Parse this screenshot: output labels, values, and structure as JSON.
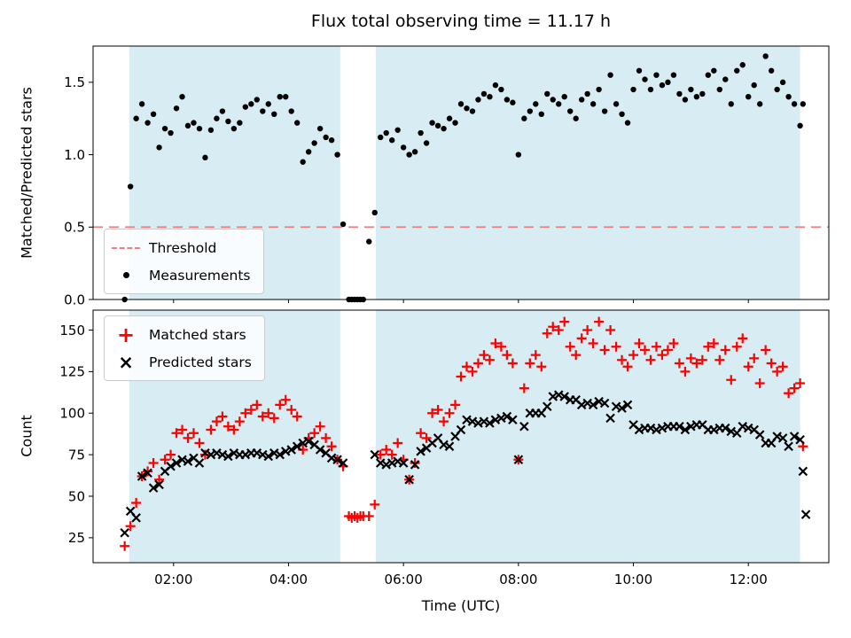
{
  "colors": {
    "shade": "#d8ecf3",
    "threshold": "#f08080",
    "matched": "#ff0000",
    "points": "#000000"
  },
  "chart_data": {
    "type": "scatter",
    "xlabel": "Time (UTC)",
    "xlim": [
      0.6,
      13.4
    ],
    "xticks": [
      {
        "v": 2,
        "label": "02:00"
      },
      {
        "v": 4,
        "label": "04:00"
      },
      {
        "v": 6,
        "label": "06:00"
      },
      {
        "v": 8,
        "label": "08:00"
      },
      {
        "v": 10,
        "label": "10:00"
      },
      {
        "v": 12,
        "label": "12:00"
      }
    ],
    "shaded_x_regions": [
      [
        1.23,
        4.9
      ],
      [
        5.52,
        12.9
      ]
    ],
    "x": [
      1.15,
      1.25,
      1.35,
      1.45,
      1.55,
      1.65,
      1.75,
      1.85,
      1.95,
      2.05,
      2.15,
      2.25,
      2.35,
      2.45,
      2.55,
      2.65,
      2.75,
      2.85,
      2.95,
      3.05,
      3.15,
      3.25,
      3.35,
      3.45,
      3.55,
      3.65,
      3.75,
      3.85,
      3.95,
      4.05,
      4.15,
      4.25,
      4.35,
      4.45,
      4.55,
      4.65,
      4.75,
      4.85,
      4.95,
      5.05,
      5.1,
      5.15,
      5.2,
      5.25,
      5.3,
      5.4,
      5.5,
      5.6,
      5.7,
      5.8,
      5.9,
      6.0,
      6.1,
      6.2,
      6.3,
      6.4,
      6.5,
      6.6,
      6.7,
      6.8,
      6.9,
      7.0,
      7.1,
      7.2,
      7.3,
      7.4,
      7.5,
      7.6,
      7.7,
      7.8,
      7.9,
      8.0,
      8.1,
      8.2,
      8.3,
      8.4,
      8.5,
      8.6,
      8.7,
      8.8,
      8.9,
      9.0,
      9.1,
      9.2,
      9.3,
      9.4,
      9.5,
      9.6,
      9.7,
      9.8,
      9.9,
      10.0,
      10.1,
      10.2,
      10.3,
      10.4,
      10.5,
      10.6,
      10.7,
      10.8,
      10.9,
      11.0,
      11.1,
      11.2,
      11.3,
      11.4,
      11.5,
      11.6,
      11.7,
      11.8,
      11.9,
      12.0,
      12.1,
      12.2,
      12.3,
      12.4,
      12.5,
      12.6,
      12.7,
      12.8,
      12.9,
      12.95,
      13.0
    ],
    "panels": [
      {
        "title": "Flux total observing time = 11.17 h",
        "ylabel": "Matched/Predicted stars",
        "ylim": [
          0,
          1.75
        ],
        "yticks": [
          {
            "v": 0,
            "label": "0.0"
          },
          {
            "v": 0.5,
            "label": "0.5"
          },
          {
            "v": 1.0,
            "label": "1.0"
          },
          {
            "v": 1.5,
            "label": "1.5"
          }
        ],
        "threshold": {
          "value": 0.5,
          "label": "Threshold"
        },
        "series": [
          {
            "name": "Measurements",
            "marker": "point",
            "color": "#000000",
            "y": [
              0.0,
              0.78,
              1.25,
              1.35,
              1.22,
              1.28,
              1.05,
              1.18,
              1.15,
              1.32,
              1.4,
              1.2,
              1.22,
              1.18,
              0.98,
              1.17,
              1.25,
              1.3,
              1.23,
              1.18,
              1.22,
              1.33,
              1.35,
              1.38,
              1.3,
              1.35,
              1.28,
              1.4,
              1.4,
              1.3,
              1.22,
              0.95,
              1.02,
              1.08,
              1.18,
              1.12,
              1.1,
              1.0,
              0.52,
              0.0,
              0.0,
              0.0,
              0.0,
              0.0,
              0.0,
              0.4,
              0.6,
              1.12,
              1.15,
              1.1,
              1.17,
              1.05,
              1.0,
              1.02,
              1.15,
              1.08,
              1.22,
              1.2,
              1.18,
              1.25,
              1.22,
              1.35,
              1.32,
              1.3,
              1.38,
              1.42,
              1.4,
              1.48,
              1.45,
              1.38,
              1.36,
              1.0,
              1.25,
              1.3,
              1.35,
              1.28,
              1.42,
              1.38,
              1.35,
              1.4,
              1.3,
              1.25,
              1.38,
              1.42,
              1.35,
              1.45,
              1.3,
              1.55,
              1.35,
              1.28,
              1.22,
              1.45,
              1.58,
              1.52,
              1.45,
              1.55,
              1.48,
              1.5,
              1.55,
              1.42,
              1.38,
              1.45,
              1.4,
              1.42,
              1.55,
              1.58,
              1.45,
              1.52,
              1.35,
              1.58,
              1.62,
              1.4,
              1.48,
              1.35,
              1.68,
              1.58,
              1.45,
              1.5,
              1.4,
              1.35,
              1.2,
              1.35,
              null
            ]
          }
        ]
      },
      {
        "ylabel": "Count",
        "ylim": [
          10,
          162
        ],
        "yticks": [
          {
            "v": 25,
            "label": "25"
          },
          {
            "v": 50,
            "label": "50"
          },
          {
            "v": 75,
            "label": "75"
          },
          {
            "v": 100,
            "label": "100"
          },
          {
            "v": 125,
            "label": "125"
          },
          {
            "v": 150,
            "label": "150"
          }
        ],
        "series": [
          {
            "name": "Matched stars",
            "marker": "plus",
            "color": "#ff0000",
            "y": [
              20,
              32,
              46,
              62,
              65,
              70,
              60,
              72,
              75,
              88,
              90,
              85,
              88,
              82,
              75,
              90,
              95,
              98,
              92,
              90,
              95,
              100,
              102,
              105,
              98,
              100,
              97,
              105,
              108,
              102,
              98,
              78,
              85,
              88,
              92,
              85,
              80,
              72,
              68,
              38,
              37,
              38,
              37,
              38,
              38,
              38,
              45,
              75,
              78,
              75,
              82,
              72,
              60,
              70,
              88,
              85,
              100,
              102,
              95,
              100,
              105,
              122,
              128,
              125,
              130,
              135,
              132,
              142,
              140,
              135,
              130,
              72,
              115,
              130,
              135,
              128,
              148,
              152,
              150,
              155,
              140,
              135,
              145,
              150,
              142,
              155,
              138,
              150,
              140,
              132,
              128,
              135,
              142,
              138,
              132,
              140,
              135,
              138,
              142,
              130,
              125,
              133,
              130,
              132,
              140,
              142,
              132,
              138,
              120,
              140,
              145,
              128,
              133,
              118,
              138,
              130,
              125,
              128,
              112,
              115,
              118,
              80,
              null
            ]
          },
          {
            "name": "Predicted stars",
            "marker": "x",
            "color": "#000000",
            "y": [
              28,
              41,
              37,
              62,
              64,
              55,
              57,
              65,
              68,
              70,
              72,
              71,
              73,
              70,
              76,
              75,
              76,
              75,
              74,
              76,
              75,
              75,
              76,
              76,
              75,
              74,
              76,
              75,
              77,
              78,
              80,
              82,
              83,
              81,
              78,
              76,
              73,
              72,
              70,
              null,
              null,
              null,
              null,
              null,
              null,
              null,
              75,
              70,
              69,
              70,
              71,
              70,
              60,
              69,
              77,
              79,
              82,
              85,
              81,
              80,
              86,
              90,
              96,
              95,
              94,
              95,
              94,
              96,
              97,
              98,
              96,
              72,
              92,
              100,
              100,
              100,
              104,
              110,
              111,
              110,
              108,
              108,
              105,
              106,
              105,
              107,
              106,
              97,
              104,
              103,
              105,
              93,
              90,
              91,
              91,
              90,
              91,
              92,
              92,
              92,
              90,
              92,
              93,
              93,
              90,
              90,
              91,
              91,
              89,
              88,
              92,
              91,
              90,
              87,
              82,
              82,
              86,
              85,
              80,
              86,
              84,
              65,
              39
            ]
          }
        ]
      }
    ]
  }
}
